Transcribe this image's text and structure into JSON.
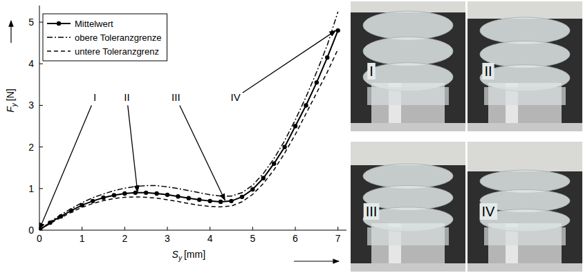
{
  "chart_data": {
    "type": "line",
    "xlabel": {
      "text": "S",
      "sub": "y",
      "unit": "[mm]"
    },
    "ylabel": {
      "text": "F",
      "sub": "y",
      "unit": "[N]"
    },
    "x": [
      0,
      0.25,
      0.5,
      0.75,
      1,
      1.25,
      1.5,
      1.75,
      2,
      2.25,
      2.5,
      2.75,
      3,
      3.25,
      3.5,
      3.75,
      4,
      4.25,
      4.5,
      4.75,
      5,
      5.25,
      5.5,
      5.75,
      6,
      6.25,
      6.5,
      6.75,
      7
    ],
    "series": [
      {
        "name": "Mittelwert",
        "color": "#000000",
        "marker": "circle",
        "line_style": "solid",
        "values": [
          0,
          0.18,
          0.33,
          0.47,
          0.6,
          0.7,
          0.78,
          0.84,
          0.88,
          0.9,
          0.9,
          0.88,
          0.85,
          0.81,
          0.77,
          0.73,
          0.7,
          0.68,
          0.7,
          0.8,
          0.98,
          1.25,
          1.6,
          2.0,
          2.5,
          3.0,
          3.55,
          4.15,
          4.8
        ]
      },
      {
        "name": "obere Toleranzgrenze",
        "color": "#000000",
        "marker": "none",
        "line_style": "dashdot",
        "values": [
          0,
          0.2,
          0.37,
          0.52,
          0.66,
          0.78,
          0.87,
          0.95,
          1.01,
          1.05,
          1.07,
          1.07,
          1.04,
          1.0,
          0.95,
          0.9,
          0.85,
          0.82,
          0.82,
          0.9,
          1.08,
          1.36,
          1.72,
          2.15,
          2.65,
          3.2,
          3.8,
          4.45,
          5.25
        ]
      },
      {
        "name": "untere Toleranzgrenz",
        "color": "#000000",
        "marker": "none",
        "line_style": "dashed",
        "values": [
          0,
          0.16,
          0.3,
          0.43,
          0.55,
          0.64,
          0.71,
          0.76,
          0.79,
          0.8,
          0.79,
          0.77,
          0.73,
          0.69,
          0.64,
          0.6,
          0.57,
          0.56,
          0.58,
          0.68,
          0.86,
          1.12,
          1.45,
          1.85,
          2.3,
          2.8,
          3.3,
          3.8,
          4.35
        ]
      }
    ],
    "xlim": [
      0,
      7.2
    ],
    "ylim": [
      0,
      5.4
    ],
    "xticks": [
      0,
      1,
      2,
      3,
      4,
      5,
      6,
      7
    ],
    "yticks": [
      0,
      1,
      2,
      3,
      4,
      5
    ],
    "legend": "upper left",
    "grid": false,
    "annotations": [
      {
        "text": "I",
        "x": 0,
        "y": 0.02,
        "label_x": 1.3,
        "label_y": 3.1
      },
      {
        "text": "II",
        "x": 2.3,
        "y": 0.92,
        "label_x": 2.05,
        "label_y": 3.1
      },
      {
        "text": "III",
        "x": 4.35,
        "y": 0.72,
        "label_x": 3.2,
        "label_y": 3.1
      },
      {
        "text": "IV",
        "x": 6.95,
        "y": 4.8,
        "label_x": 4.6,
        "label_y": 3.1
      }
    ]
  },
  "photos": {
    "labels": [
      "I",
      "II",
      "III",
      "IV"
    ]
  }
}
